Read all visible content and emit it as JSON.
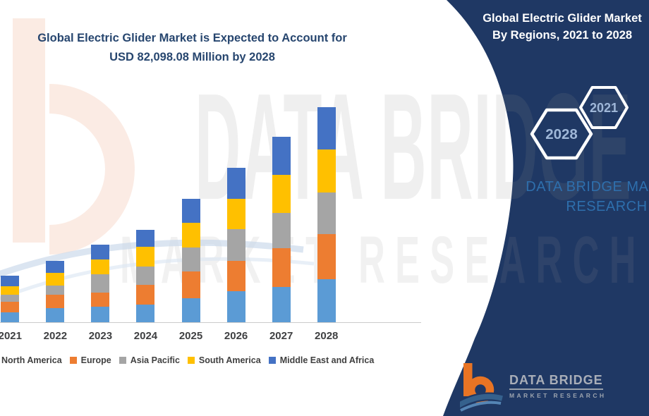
{
  "header": {
    "title_line1": "Global Electric Glider Market is Expected to Account for",
    "title_line2": "USD 82,098.08 Million by 2028"
  },
  "side_panel": {
    "panel_color": "#1F3864",
    "title_line1": "Global Electric Glider Market",
    "title_line2": "By Regions, 2021 to 2028",
    "hexagon_left": "2028",
    "hexagon_right": "2021",
    "brand_line1": "DATA BRIDGE MARKET",
    "brand_line2": "RESEARCH",
    "brand_text_color": "#2E6FAD"
  },
  "watermark": {
    "row1": "DATA BRIDGE",
    "row2": "MARKET RESEARCH"
  },
  "footer_logo": {
    "brand": "DATA BRIDGE",
    "sub": "MARKET RESEARCH"
  },
  "chart_data": {
    "type": "bar",
    "stacked": true,
    "title": "Global Electric Glider Market By Regions, 2021 to 2028",
    "value_unit": "USD Million (estimated from bar heights; 2028 total anchored to USD 82,098.08 Million stated in title)",
    "categories": [
      "2021",
      "2022",
      "2023",
      "2024",
      "2025",
      "2026",
      "2027",
      "2028"
    ],
    "series": [
      {
        "name": "North America",
        "color": "#5B9BD5",
        "values": [
          3840,
          5264,
          5828,
          6714,
          9238,
          11924,
          13428,
          16490
        ]
      },
      {
        "name": "Europe",
        "color": "#ED7D31",
        "values": [
          3948,
          5291,
          5559,
          7439,
          10017,
          11629,
          14771,
          17268
        ]
      },
      {
        "name": "Asia Pacific",
        "color": "#A5A5A5",
        "values": [
          2686,
          3491,
          6795,
          7171,
          9212,
          12085,
          13428,
          15657
        ]
      },
      {
        "name": "South America",
        "color": "#FFC000",
        "values": [
          3384,
          4915,
          5720,
          7600,
          9588,
          11360,
          14610,
          16651
        ]
      },
      {
        "name": "Middle East and Africa",
        "color": "#4472C4",
        "values": [
          3867,
          4566,
          5640,
          6257,
          8943,
          11924,
          14502,
          16032
        ]
      }
    ],
    "totals_est": [
      17725,
      23527,
      29542,
      35181,
      46998,
      58922,
      70739,
      82098
    ],
    "ylim": [
      0,
      88000
    ],
    "grid": false,
    "y_axis_visible": false,
    "legend_position": "bottom",
    "xlabel": "",
    "ylabel": ""
  }
}
